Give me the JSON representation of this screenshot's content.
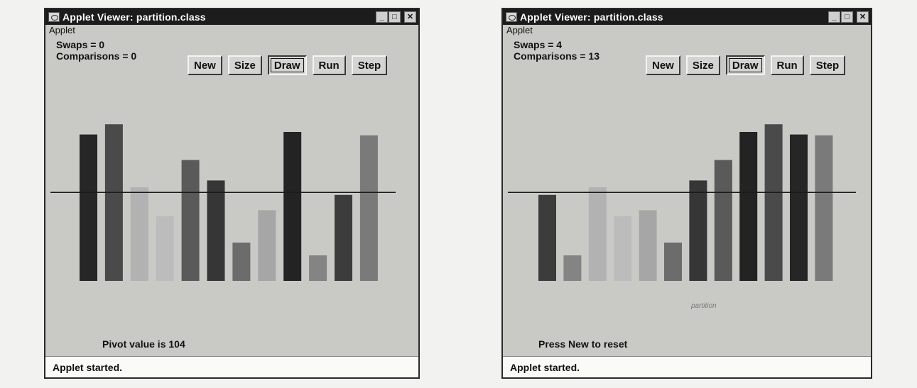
{
  "windows": [
    {
      "title": "Applet Viewer: partition.class",
      "menu": "Applet",
      "swaps": "Swaps = 0",
      "comparisons": "Comparisons = 0",
      "buttons": [
        "New",
        "Size",
        "Draw",
        "Run",
        "Step"
      ],
      "active_button": "Draw",
      "message": "Pivot value is 104",
      "partition_label": "",
      "status": "Applet started.",
      "bars": [
        {
          "value": 172,
          "color": "#262626"
        },
        {
          "value": 184,
          "color": "#4a4a4a"
        },
        {
          "value": 110,
          "color": "#b2b2b2"
        },
        {
          "value": 76,
          "color": "#bcbcbc"
        },
        {
          "value": 142,
          "color": "#5a5a5a"
        },
        {
          "value": 118,
          "color": "#363636"
        },
        {
          "value": 45,
          "color": "#6c6c6c"
        },
        {
          "value": 83,
          "color": "#a6a6a6"
        },
        {
          "value": 175,
          "color": "#232323"
        },
        {
          "value": 30,
          "color": "#848484"
        },
        {
          "value": 101,
          "color": "#3c3c3c"
        },
        {
          "value": 171,
          "color": "#7a7a7a"
        }
      ]
    },
    {
      "title": "Applet Viewer: partition.class",
      "menu": "Applet",
      "swaps": "Swaps = 4",
      "comparisons": "Comparisons = 13",
      "buttons": [
        "New",
        "Size",
        "Draw",
        "Run",
        "Step"
      ],
      "active_button": "Draw",
      "message": "Press New to reset",
      "partition_label": "partition",
      "status": "Applet started.",
      "bars": [
        {
          "value": 101,
          "color": "#3c3c3c"
        },
        {
          "value": 30,
          "color": "#848484"
        },
        {
          "value": 110,
          "color": "#b2b2b2"
        },
        {
          "value": 76,
          "color": "#bcbcbc"
        },
        {
          "value": 83,
          "color": "#a6a6a6"
        },
        {
          "value": 45,
          "color": "#6c6c6c"
        },
        {
          "value": 118,
          "color": "#363636"
        },
        {
          "value": 142,
          "color": "#5a5a5a"
        },
        {
          "value": 175,
          "color": "#232323"
        },
        {
          "value": 184,
          "color": "#4a4a4a"
        },
        {
          "value": 172,
          "color": "#262626"
        },
        {
          "value": 171,
          "color": "#7a7a7a"
        }
      ]
    }
  ],
  "pivot_value": 104,
  "icons": {
    "app": "java-cup-icon",
    "minimize": "minimize-icon",
    "maximize": "maximize-icon",
    "close": "close-icon"
  }
}
